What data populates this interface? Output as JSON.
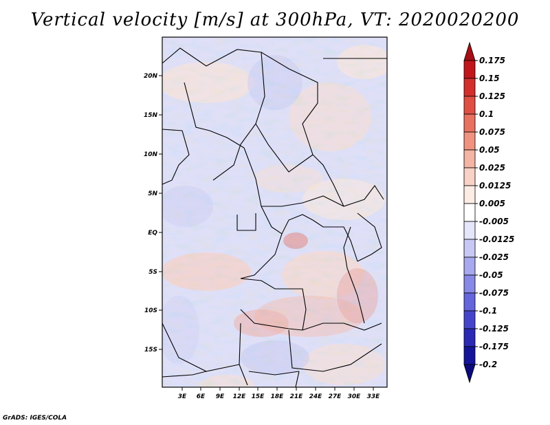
{
  "title": "Vertical velocity [m/s] at 300hPa, VT: 2020020200",
  "credit": "GrADS: IGES/COLA",
  "map": {
    "lat_ticks": [
      "20N",
      "15N",
      "10N",
      "5N",
      "EQ",
      "5S",
      "10S",
      "15S"
    ],
    "lon_ticks": [
      "3E",
      "6E",
      "9E",
      "12E",
      "15E",
      "18E",
      "21E",
      "24E",
      "27E",
      "30E",
      "33E"
    ]
  },
  "colorbar": {
    "levels": [
      "0.175",
      "0.15",
      "0.125",
      "0.1",
      "0.075",
      "0.05",
      "0.025",
      "0.0125",
      "0.005",
      "-0.005",
      "-0.0125",
      "-0.025",
      "-0.05",
      "-0.075",
      "-0.1",
      "-0.125",
      "-0.175",
      "-0.2"
    ],
    "colors": [
      "#a50f15",
      "#c0161c",
      "#d32f2c",
      "#e04f44",
      "#e8725f",
      "#ef9380",
      "#f4b5a4",
      "#f8d2c6",
      "#fcecE6",
      "#ffffff",
      "#e6e6fb",
      "#c8c8f5",
      "#a8a8ee",
      "#8888e6",
      "#6565dc",
      "#4545cc",
      "#2a2ab5",
      "#14149a",
      "#0a0a7a"
    ]
  },
  "colors": {
    "neutral": "#ffffff",
    "positive_strong": "#a50f15",
    "negative_strong": "#0a0a7a"
  }
}
